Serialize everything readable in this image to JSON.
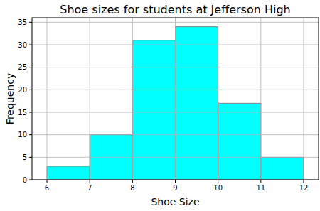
{
  "chart_data": {
    "type": "histogram",
    "title": "Shoe sizes for students at Jefferson High",
    "x_label": "Shoe Size",
    "y_label": "Frequency",
    "bins": [
      6,
      7,
      8,
      9,
      10,
      11,
      12
    ],
    "values": [
      3,
      10,
      31,
      34,
      17,
      5
    ],
    "color": "#00ffff",
    "xlim": [
      5.65,
      12.35
    ],
    "xticks": [
      6,
      7,
      8,
      9,
      10,
      11,
      12
    ],
    "ylim": [
      0,
      36
    ],
    "yticks": [
      0,
      5,
      10,
      15,
      20,
      25,
      30,
      35
    ],
    "grid": true
  }
}
